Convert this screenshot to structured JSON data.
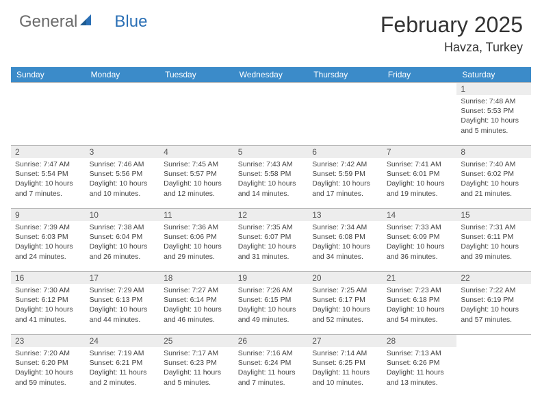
{
  "brand": {
    "word1": "General",
    "word2": "Blue",
    "color_general": "#6b6b6b",
    "color_blue": "#2a6fb5",
    "icon_color": "#2a6fb5"
  },
  "header": {
    "month_title": "February 2025",
    "location": "Havza, Turkey"
  },
  "colors": {
    "header_row_bg": "#3b8bc9",
    "header_row_text": "#ffffff",
    "daynum_bg": "#ededed",
    "border": "#b8b8b8"
  },
  "day_labels": [
    "Sunday",
    "Monday",
    "Tuesday",
    "Wednesday",
    "Thursday",
    "Friday",
    "Saturday"
  ],
  "label_templates": {
    "sunrise": "Sunrise: ",
    "sunset": "Sunset: ",
    "daylight": "Daylight: "
  },
  "grid": [
    [
      null,
      null,
      null,
      null,
      null,
      null,
      {
        "n": "1",
        "sr": "7:48 AM",
        "ss": "5:53 PM",
        "dl": "10 hours and 5 minutes."
      }
    ],
    [
      {
        "n": "2",
        "sr": "7:47 AM",
        "ss": "5:54 PM",
        "dl": "10 hours and 7 minutes."
      },
      {
        "n": "3",
        "sr": "7:46 AM",
        "ss": "5:56 PM",
        "dl": "10 hours and 10 minutes."
      },
      {
        "n": "4",
        "sr": "7:45 AM",
        "ss": "5:57 PM",
        "dl": "10 hours and 12 minutes."
      },
      {
        "n": "5",
        "sr": "7:43 AM",
        "ss": "5:58 PM",
        "dl": "10 hours and 14 minutes."
      },
      {
        "n": "6",
        "sr": "7:42 AM",
        "ss": "5:59 PM",
        "dl": "10 hours and 17 minutes."
      },
      {
        "n": "7",
        "sr": "7:41 AM",
        "ss": "6:01 PM",
        "dl": "10 hours and 19 minutes."
      },
      {
        "n": "8",
        "sr": "7:40 AM",
        "ss": "6:02 PM",
        "dl": "10 hours and 21 minutes."
      }
    ],
    [
      {
        "n": "9",
        "sr": "7:39 AM",
        "ss": "6:03 PM",
        "dl": "10 hours and 24 minutes."
      },
      {
        "n": "10",
        "sr": "7:38 AM",
        "ss": "6:04 PM",
        "dl": "10 hours and 26 minutes."
      },
      {
        "n": "11",
        "sr": "7:36 AM",
        "ss": "6:06 PM",
        "dl": "10 hours and 29 minutes."
      },
      {
        "n": "12",
        "sr": "7:35 AM",
        "ss": "6:07 PM",
        "dl": "10 hours and 31 minutes."
      },
      {
        "n": "13",
        "sr": "7:34 AM",
        "ss": "6:08 PM",
        "dl": "10 hours and 34 minutes."
      },
      {
        "n": "14",
        "sr": "7:33 AM",
        "ss": "6:09 PM",
        "dl": "10 hours and 36 minutes."
      },
      {
        "n": "15",
        "sr": "7:31 AM",
        "ss": "6:11 PM",
        "dl": "10 hours and 39 minutes."
      }
    ],
    [
      {
        "n": "16",
        "sr": "7:30 AM",
        "ss": "6:12 PM",
        "dl": "10 hours and 41 minutes."
      },
      {
        "n": "17",
        "sr": "7:29 AM",
        "ss": "6:13 PM",
        "dl": "10 hours and 44 minutes."
      },
      {
        "n": "18",
        "sr": "7:27 AM",
        "ss": "6:14 PM",
        "dl": "10 hours and 46 minutes."
      },
      {
        "n": "19",
        "sr": "7:26 AM",
        "ss": "6:15 PM",
        "dl": "10 hours and 49 minutes."
      },
      {
        "n": "20",
        "sr": "7:25 AM",
        "ss": "6:17 PM",
        "dl": "10 hours and 52 minutes."
      },
      {
        "n": "21",
        "sr": "7:23 AM",
        "ss": "6:18 PM",
        "dl": "10 hours and 54 minutes."
      },
      {
        "n": "22",
        "sr": "7:22 AM",
        "ss": "6:19 PM",
        "dl": "10 hours and 57 minutes."
      }
    ],
    [
      {
        "n": "23",
        "sr": "7:20 AM",
        "ss": "6:20 PM",
        "dl": "10 hours and 59 minutes."
      },
      {
        "n": "24",
        "sr": "7:19 AM",
        "ss": "6:21 PM",
        "dl": "11 hours and 2 minutes."
      },
      {
        "n": "25",
        "sr": "7:17 AM",
        "ss": "6:23 PM",
        "dl": "11 hours and 5 minutes."
      },
      {
        "n": "26",
        "sr": "7:16 AM",
        "ss": "6:24 PM",
        "dl": "11 hours and 7 minutes."
      },
      {
        "n": "27",
        "sr": "7:14 AM",
        "ss": "6:25 PM",
        "dl": "11 hours and 10 minutes."
      },
      {
        "n": "28",
        "sr": "7:13 AM",
        "ss": "6:26 PM",
        "dl": "11 hours and 13 minutes."
      },
      null
    ]
  ]
}
